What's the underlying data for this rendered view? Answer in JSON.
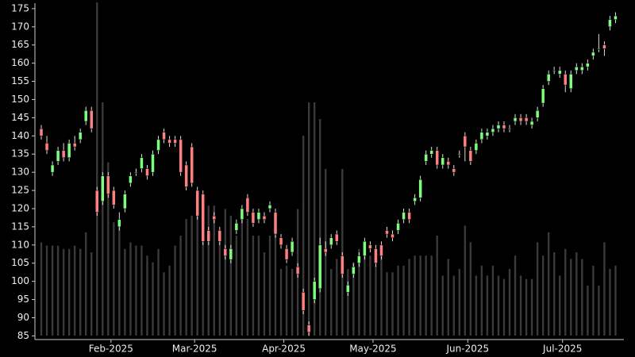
{
  "chart_data": {
    "type": "candlestick",
    "up_color": "#7dff7d",
    "down_color": "#ff8080",
    "wick_color": "#dddddd",
    "volume_color": "#3a3a3a",
    "open": [
      142,
      138,
      130,
      133,
      136,
      134,
      138,
      139,
      144,
      147,
      125,
      122,
      129,
      125,
      115,
      120,
      127,
      130,
      131,
      131,
      130,
      136,
      141,
      139,
      139,
      139,
      132,
      137,
      125,
      124,
      114,
      118,
      114,
      109,
      106,
      114,
      117,
      123,
      119,
      117,
      118,
      120,
      119,
      112,
      109,
      108,
      104,
      97,
      88,
      95,
      98,
      109,
      110,
      113,
      107,
      97,
      102,
      105,
      107,
      110,
      109,
      110,
      114,
      113,
      114,
      117,
      119,
      122,
      123,
      133,
      135,
      136,
      132,
      133,
      131,
      135,
      140,
      136,
      136,
      139,
      140,
      141,
      142,
      143,
      142,
      144,
      145,
      145,
      143,
      145,
      149,
      155,
      158,
      157,
      157,
      153,
      158,
      158,
      159,
      162,
      164,
      165,
      170,
      172
    ],
    "close": [
      140,
      136,
      132,
      136,
      134,
      138,
      137,
      141,
      147,
      142,
      119,
      129,
      124,
      121,
      117,
      124,
      129,
      130,
      134,
      129,
      135,
      139,
      139,
      138,
      138,
      130,
      126,
      127,
      118,
      111,
      111,
      117,
      111,
      107,
      109,
      116,
      120,
      119,
      116,
      119,
      117,
      121,
      113,
      110,
      106,
      111,
      102,
      92,
      86,
      100,
      110,
      108,
      112,
      111,
      102,
      99,
      104,
      107,
      111,
      109,
      105,
      107,
      113,
      112,
      116,
      119,
      117,
      123,
      128,
      135,
      136,
      132,
      134,
      132,
      130,
      135,
      137,
      133,
      138,
      141,
      141,
      142,
      143,
      142,
      142,
      145,
      144,
      144,
      144,
      147,
      153,
      157,
      158,
      158,
      154,
      157,
      159,
      159,
      160,
      163,
      164,
      164,
      172,
      173
    ],
    "high": [
      143,
      140,
      133,
      137,
      138,
      139,
      140,
      142,
      148,
      148,
      126,
      130,
      130,
      126,
      119,
      125,
      130,
      131,
      135,
      132,
      136,
      140,
      142,
      140,
      140,
      140,
      133,
      138,
      126,
      125,
      115,
      119,
      115,
      110,
      110,
      117,
      121,
      124,
      120,
      120,
      119,
      122,
      120,
      113,
      110,
      112,
      105,
      98,
      89,
      101,
      112,
      111,
      113,
      114,
      108,
      100,
      105,
      108,
      112,
      111,
      110,
      111,
      115,
      114,
      117,
      120,
      120,
      124,
      129,
      136,
      137,
      137,
      135,
      134,
      132,
      136,
      141,
      137,
      139,
      142,
      142,
      143,
      144,
      144,
      143,
      146,
      146,
      146,
      145,
      148,
      154,
      158,
      159,
      159,
      158,
      158,
      160,
      160,
      161,
      164,
      168,
      166,
      173,
      174
    ],
    "low": [
      139,
      135,
      129,
      132,
      133,
      133,
      136,
      138,
      143,
      141,
      118,
      121,
      123,
      120,
      114,
      119,
      126,
      129,
      130,
      128,
      129,
      135,
      138,
      137,
      137,
      129,
      125,
      126,
      117,
      110,
      110,
      116,
      110,
      106,
      105,
      113,
      116,
      118,
      115,
      116,
      116,
      119,
      112,
      109,
      105,
      107,
      101,
      91,
      85,
      94,
      97,
      107,
      109,
      110,
      101,
      96,
      101,
      104,
      106,
      108,
      104,
      106,
      112,
      111,
      113,
      116,
      116,
      121,
      122,
      132,
      134,
      131,
      131,
      131,
      129,
      134,
      133,
      132,
      135,
      138,
      139,
      140,
      141,
      141,
      141,
      143,
      143,
      143,
      142,
      144,
      148,
      154,
      157,
      156,
      152,
      152,
      157,
      157,
      158,
      161,
      163,
      162,
      169,
      171
    ],
    "volume": [
      28,
      27,
      27,
      27,
      26,
      26,
      27,
      26,
      31,
      25,
      100,
      70,
      52,
      34,
      34,
      26,
      28,
      27,
      27,
      24,
      22,
      26,
      19,
      21,
      27,
      30,
      35,
      36,
      40,
      40,
      39,
      39,
      31,
      38,
      36,
      30,
      38,
      35,
      30,
      30,
      25,
      30,
      30,
      20,
      21,
      20,
      38,
      60,
      70,
      70,
      65,
      50,
      20,
      23,
      50,
      20,
      22,
      26,
      27,
      24,
      21,
      26,
      19,
      19,
      21,
      21,
      23,
      24,
      24,
      24,
      24,
      30,
      18,
      23,
      18,
      20,
      33,
      28,
      18,
      21,
      18,
      21,
      18,
      17,
      20,
      24,
      18,
      17,
      17,
      28,
      24,
      31,
      25,
      18,
      26,
      23,
      25,
      23,
      15,
      21,
      15,
      28,
      20,
      21
    ],
    "xlim": [
      -1,
      104.5
    ],
    "xticks": [
      {
        "value": 12.5,
        "label": "Feb-2025"
      },
      {
        "value": 27.5,
        "label": "Mar-2025"
      },
      {
        "value": 43.5,
        "label": "Apr-2025"
      },
      {
        "value": 59.5,
        "label": "May-2025"
      },
      {
        "value": 76.5,
        "label": "Jun-2025"
      },
      {
        "value": 93.5,
        "label": "Jul-2025"
      }
    ],
    "ylim": [
      84,
      176.5
    ],
    "yticks": [
      85,
      90,
      95,
      100,
      105,
      110,
      115,
      120,
      125,
      130,
      135,
      140,
      145,
      150,
      155,
      160,
      165,
      170,
      175
    ]
  }
}
